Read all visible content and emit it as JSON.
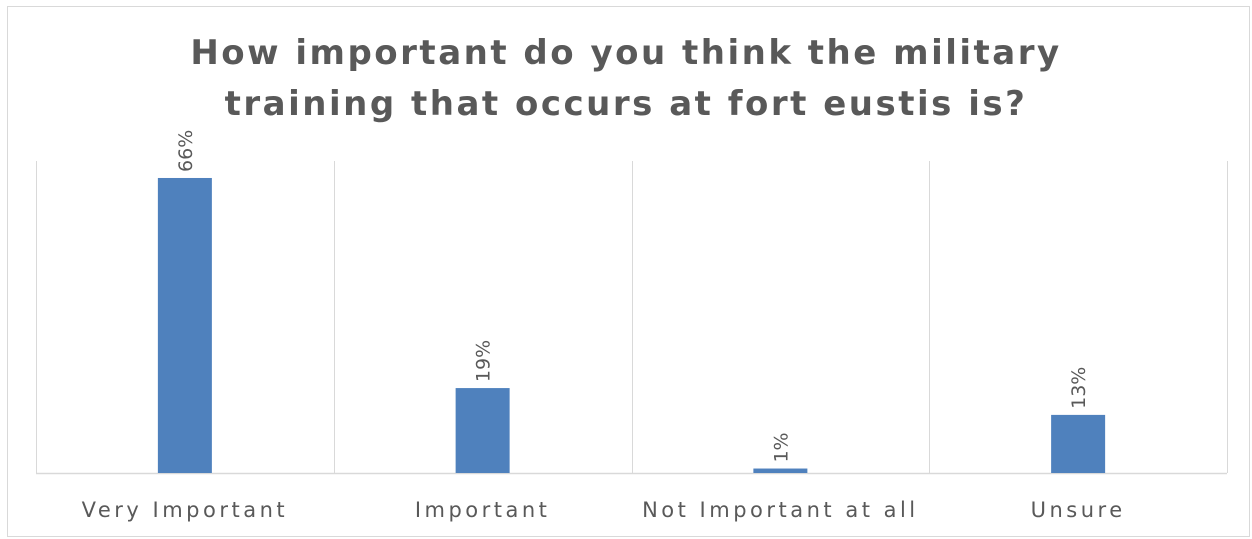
{
  "chart_data": {
    "type": "bar",
    "title": "How important do you think the military training that occurs at fort eustis is?",
    "title_lines": [
      "How important do you think the military",
      "training that occurs at fort eustis is?"
    ],
    "categories": [
      "Very Important",
      "Important",
      "Not Important at all",
      "Unsure"
    ],
    "values": [
      66,
      19,
      1,
      13
    ],
    "data_labels": [
      "66%",
      "19%",
      "1%",
      "13%"
    ],
    "ylim": [
      0,
      70
    ],
    "xlabel": "",
    "ylabel": "",
    "grid": "vertical category separators",
    "legend": "none",
    "colors": {
      "bar": "#4f81bd",
      "text": "#595959",
      "grid": "#d9d9d9"
    }
  }
}
